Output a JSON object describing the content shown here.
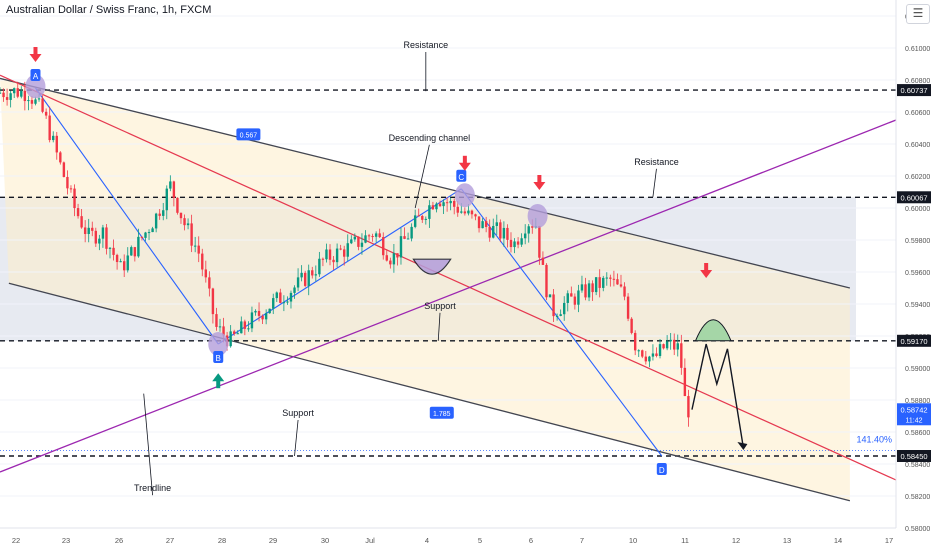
{
  "header": {
    "title": "Australian Dollar / Swiss Franc, 1h, FXCM"
  },
  "icons": {
    "menu": "hamburger-menu-icon"
  },
  "colors": {
    "background": "#ffffff",
    "channel_fill": "#fdecc8",
    "range_fill": "#dfe3ec",
    "bull": "#089981",
    "bear": "#f23645",
    "trendline": "#9c27b0",
    "red_line": "#e53950",
    "blue_line": "#2962ff",
    "channel_line": "#434651",
    "marker_fill": "#b39ddb",
    "green_arc": "#a5d6a7"
  },
  "chart_data": {
    "type": "candlestick",
    "title": "Australian Dollar / Swiss Franc, 1h, FXCM",
    "ylim": [
      0.58,
      0.613
    ],
    "x_ticks": [
      "22",
      "23",
      "26",
      "27",
      "28",
      "29",
      "30",
      "Jul",
      "4",
      "5",
      "6",
      "7",
      "10",
      "11",
      "12",
      "13",
      "14",
      "17"
    ],
    "y_ticks": [
      "0.61200",
      "0.61000",
      "0.60800",
      "0.60600",
      "0.60400",
      "0.60200",
      "0.60000",
      "0.59800",
      "0.59600",
      "0.59400",
      "0.59200",
      "0.59000",
      "0.58800",
      "0.58600",
      "0.58400",
      "0.58200",
      "0.58000"
    ],
    "price_levels": [
      {
        "label": "0.60737",
        "value": 0.60737
      },
      {
        "label": "0.60067",
        "value": 0.60067
      },
      {
        "label": "0.59170",
        "value": 0.5917
      },
      {
        "label": "0.58450",
        "value": 0.5845
      }
    ],
    "current_price": {
      "value": 0.58742,
      "label": "0.58742",
      "countdown": "11:42"
    },
    "percent_label": "141.40%",
    "price_path": [
      {
        "x": 0.0,
        "y": 0.6072
      },
      {
        "x": 1.0,
        "y": 0.6073
      },
      {
        "x": 1.8,
        "y": 0.6072
      },
      {
        "x": 2.7,
        "y": 0.6058
      },
      {
        "x": 3.5,
        "y": 0.603
      },
      {
        "x": 4.4,
        "y": 0.6
      },
      {
        "x": 5.2,
        "y": 0.5982
      },
      {
        "x": 6.0,
        "y": 0.5985
      },
      {
        "x": 7.0,
        "y": 0.5962
      },
      {
        "x": 8.0,
        "y": 0.5978
      },
      {
        "x": 9.0,
        "y": 0.5995
      },
      {
        "x": 9.8,
        "y": 0.6014
      },
      {
        "x": 10.6,
        "y": 0.599
      },
      {
        "x": 11.4,
        "y": 0.5972
      },
      {
        "x": 12.4,
        "y": 0.5925
      },
      {
        "x": 13.2,
        "y": 0.5917
      },
      {
        "x": 14.2,
        "y": 0.5928
      },
      {
        "x": 15.5,
        "y": 0.594
      },
      {
        "x": 17.0,
        "y": 0.5952
      },
      {
        "x": 18.5,
        "y": 0.5968
      },
      {
        "x": 20.0,
        "y": 0.5976
      },
      {
        "x": 21.3,
        "y": 0.5985
      },
      {
        "x": 22.3,
        "y": 0.5968
      },
      {
        "x": 23.6,
        "y": 0.599
      },
      {
        "x": 24.8,
        "y": 0.6007
      },
      {
        "x": 26.0,
        "y": 0.6
      },
      {
        "x": 27.2,
        "y": 0.599
      },
      {
        "x": 28.3,
        "y": 0.5985
      },
      {
        "x": 29.2,
        "y": 0.5978
      },
      {
        "x": 29.9,
        "y": 0.5992
      },
      {
        "x": 30.4,
        "y": 0.599
      },
      {
        "x": 30.7,
        "y": 0.5965
      },
      {
        "x": 31.3,
        "y": 0.5935
      },
      {
        "x": 32.3,
        "y": 0.5942
      },
      {
        "x": 33.5,
        "y": 0.595
      },
      {
        "x": 34.6,
        "y": 0.5955
      },
      {
        "x": 35.4,
        "y": 0.5945
      },
      {
        "x": 36.0,
        "y": 0.5915
      },
      {
        "x": 37.0,
        "y": 0.5905
      },
      {
        "x": 37.8,
        "y": 0.5915
      },
      {
        "x": 38.5,
        "y": 0.5912
      },
      {
        "x": 38.8,
        "y": 0.588
      },
      {
        "x": 39.0,
        "y": 0.5874
      }
    ],
    "projection_path": [
      {
        "x": 39.0,
        "y": 0.5874
      },
      {
        "x": 39.8,
        "y": 0.5915
      },
      {
        "x": 40.4,
        "y": 0.589
      },
      {
        "x": 41.0,
        "y": 0.5912
      },
      {
        "x": 41.9,
        "y": 0.585
      }
    ],
    "lines": {
      "channel_top": [
        {
          "x": 0.0,
          "y": 0.6081
        },
        {
          "x": 47.9,
          "y": 0.595
        }
      ],
      "channel_bottom": [
        {
          "x": 0.5,
          "y": 0.5953
        },
        {
          "x": 47.9,
          "y": 0.5817
        }
      ],
      "red_line": [
        {
          "x": 0.0,
          "y": 0.6083
        },
        {
          "x": 50.5,
          "y": 0.583
        }
      ],
      "trendline": [
        {
          "x": 0.0,
          "y": 0.5835
        },
        {
          "x": 50.5,
          "y": 0.6055
        }
      ],
      "blue_segments": [
        [
          {
            "x": 2.0,
            "y": 0.6075
          },
          {
            "x": 12.3,
            "y": 0.5915
          }
        ],
        [
          {
            "x": 12.3,
            "y": 0.5915
          },
          {
            "x": 26.0,
            "y": 0.6012
          }
        ],
        [
          {
            "x": 26.0,
            "y": 0.6012
          },
          {
            "x": 37.3,
            "y": 0.5845
          }
        ]
      ]
    },
    "points": [
      {
        "label": "A",
        "x": 2.0,
        "y": 0.6075
      },
      {
        "label": "B",
        "x": 12.3,
        "y": 0.5915
      },
      {
        "label": "C",
        "x": 26.0,
        "y": 0.6012
      },
      {
        "label": "D",
        "x": 37.3,
        "y": 0.5845
      }
    ],
    "markers": [
      {
        "x": 2.0,
        "y": 0.6076
      },
      {
        "x": 12.3,
        "y": 0.5915
      },
      {
        "x": 26.2,
        "y": 0.6008
      },
      {
        "x": 30.3,
        "y": 0.5995
      }
    ],
    "arrows": [
      {
        "direction": "down",
        "x": 2.0,
        "y": 0.6095
      },
      {
        "direction": "up",
        "x": 12.3,
        "y": 0.5893
      },
      {
        "direction": "down",
        "x": 26.2,
        "y": 0.6027
      },
      {
        "direction": "down",
        "x": 30.4,
        "y": 0.6015
      },
      {
        "direction": "down",
        "x": 39.8,
        "y": 0.596
      }
    ],
    "annotations": [
      {
        "text": "Resistance",
        "x": 24.0,
        "y": 0.61,
        "pointer": {
          "x": 24.0,
          "y": 0.6073
        }
      },
      {
        "text": "Descending channel",
        "x": 24.2,
        "y": 0.6042,
        "pointer": {
          "x": 23.4,
          "y": 0.6
        }
      },
      {
        "text": "Resistance",
        "x": 37.0,
        "y": 0.6027,
        "pointer": {
          "x": 36.8,
          "y": 0.6007
        }
      },
      {
        "text": "Support",
        "x": 24.8,
        "y": 0.5937,
        "pointer": {
          "x": 24.7,
          "y": 0.5917
        }
      },
      {
        "text": "Support",
        "x": 16.8,
        "y": 0.587,
        "pointer": {
          "x": 16.6,
          "y": 0.5845
        }
      },
      {
        "text": "Trendline",
        "x": 8.6,
        "y": 0.5823,
        "pointer": {
          "x": 8.1,
          "y": 0.5884
        }
      }
    ],
    "fib_labels": [
      {
        "text": "0.567",
        "x": 14.0,
        "y": 0.6046
      },
      {
        "text": "1.785",
        "x": 24.9,
        "y": 0.5872
      }
    ]
  }
}
